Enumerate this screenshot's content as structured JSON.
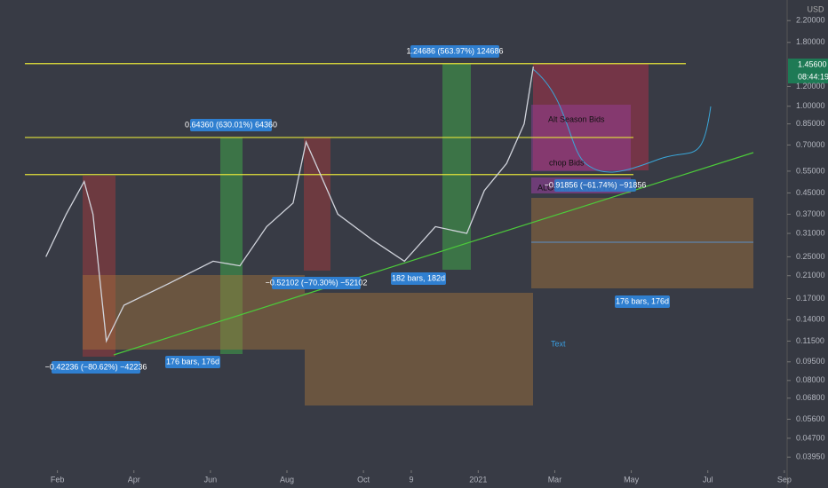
{
  "chart_data": {
    "type": "line",
    "log_scale": true,
    "currency": "USD",
    "current_price": {
      "value": 1.456,
      "label": "1.45600"
    },
    "countdown": "08:44:19",
    "x": [
      0.7,
      1.23,
      1.7,
      1.93,
      2.28,
      2.74,
      3.9,
      5.07,
      5.77,
      6.47,
      7.16,
      7.5,
      7.86,
      8.33,
      9.26,
      10.07,
      10.88,
      11.7,
      12.16,
      12.74,
      13.2,
      13.44
    ],
    "series": [
      {
        "color": "#d1d4dc",
        "values": [
          0.25,
          0.37,
          0.5,
          0.37,
          0.115,
          0.16,
          0.195,
          0.24,
          0.23,
          0.33,
          0.41,
          0.72,
          0.54,
          0.37,
          0.29,
          0.24,
          0.33,
          0.31,
          0.46,
          0.59,
          0.85,
          1.44
        ]
      }
    ],
    "levels": [
      1.48,
      0.75,
      0.533
    ],
    "xlim": [
      -0.5,
      20.05
    ],
    "xticks": [
      {
        "value": 1,
        "label": "Feb"
      },
      {
        "value": 3,
        "label": "Apr"
      },
      {
        "value": 5,
        "label": "Jun"
      },
      {
        "value": 7,
        "label": "Aug"
      },
      {
        "value": 9,
        "label": "Oct"
      },
      {
        "value": 10.25,
        "label": "9"
      },
      {
        "value": 12,
        "label": "2021"
      },
      {
        "value": 14,
        "label": "Mar"
      },
      {
        "value": 16,
        "label": "May"
      },
      {
        "value": 18,
        "label": "Jul"
      },
      {
        "value": 20,
        "label": "Sep"
      }
    ],
    "ylim": [
      0.035,
      2.66
    ],
    "yticks": [
      {
        "value": 2.2,
        "label": "2.20000"
      },
      {
        "value": 1.8,
        "label": "1.80000"
      },
      {
        "value": 1.2,
        "label": "1.20000"
      },
      {
        "value": 1,
        "label": "1.00000"
      },
      {
        "value": 0.85,
        "label": "0.85000"
      },
      {
        "value": 0.7,
        "label": "0.70000"
      },
      {
        "value": 0.55,
        "label": "0.55000"
      },
      {
        "value": 0.45,
        "label": "0.45000"
      },
      {
        "value": 0.37,
        "label": "0.37000"
      },
      {
        "value": 0.31,
        "label": "0.31000"
      },
      {
        "value": 0.25,
        "label": "0.25000"
      },
      {
        "value": 0.21,
        "label": "0.21000"
      },
      {
        "value": 0.17,
        "label": "0.17000"
      },
      {
        "value": 0.14,
        "label": "0.14000"
      },
      {
        "value": 0.115,
        "label": "0.11500"
      },
      {
        "value": 0.095,
        "label": "0.09500"
      },
      {
        "value": 0.08,
        "label": "0.08000"
      },
      {
        "value": 0.068,
        "label": "0.06800"
      },
      {
        "value": 0.056,
        "label": "0.05600"
      },
      {
        "value": 0.047,
        "label": "0.04700"
      },
      {
        "value": 0.0395,
        "label": "0.03950"
      }
    ],
    "annotations": [
      "1.24686 (563.97%) 124686",
      "0.64360 (630.01%) 64360",
      "−0.52102 (−70.30%) −52102",
      "182 bars, 182d",
      "−0.42236 (−80.62%) −42236",
      "176 bars, 176d",
      "176 bars, 176d",
      "Alt Season Bids",
      "chop Bids",
      "ALGOAIRFORCE PPT",
      "−0.91856 (−61.74%) −91856",
      "Text"
    ]
  }
}
